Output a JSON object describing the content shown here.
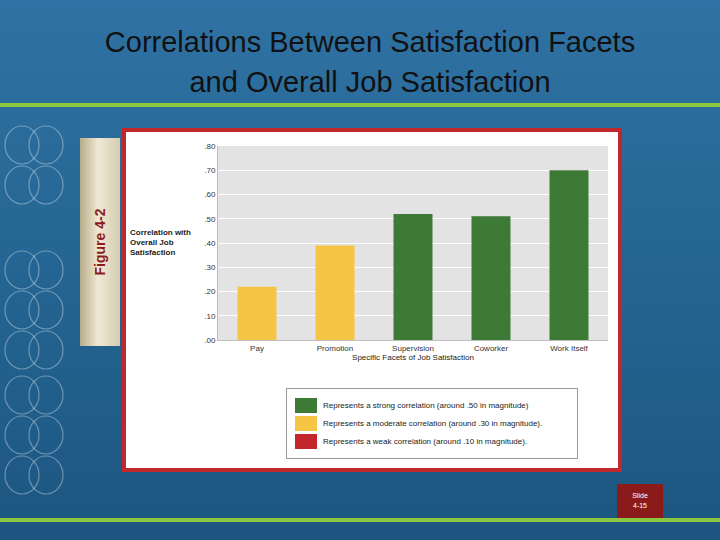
{
  "slide": {
    "title": "Correlations Between Satisfaction Facets and Overall Job Satisfaction",
    "figure_label": "Figure 4-2",
    "slide_number": "Slide 4-15"
  },
  "chart_data": {
    "type": "bar",
    "x_label": "Specific Facets of Job Satisfaction",
    "y_label": "Correlation with Overall Job Satisfaction",
    "categories": [
      "Pay",
      "Promotion",
      "Supervision",
      "Coworker",
      "Work Itself"
    ],
    "series": [
      {
        "name": "Represents a strong correlation (around .50 in magnitude)",
        "color": "#3d7a36",
        "values": [
          null,
          null,
          0.52,
          0.51,
          0.7
        ]
      },
      {
        "name": "Represents a moderate correlation (around .30 in magnitude).",
        "color": "#f6c545",
        "values": [
          0.22,
          0.39,
          null,
          null,
          null
        ]
      },
      {
        "name": "Represents a weak correlation (around .10 in magnitude).",
        "color": "#c1272d",
        "values": [
          null,
          null,
          null,
          null,
          null
        ]
      }
    ],
    "ylim": [
      0,
      0.8
    ],
    "yticks": [
      {
        "value": 0,
        "label": ".00"
      },
      {
        "value": 0.1,
        "label": ".10"
      },
      {
        "value": 0.2,
        "label": ".20"
      },
      {
        "value": 0.3,
        "label": ".30"
      },
      {
        "value": 0.4,
        "label": ".40"
      },
      {
        "value": 0.5,
        "label": ".50"
      },
      {
        "value": 0.6,
        "label": ".60"
      },
      {
        "value": 0.7,
        "label": ".70"
      },
      {
        "value": 0.8,
        "label": ".80"
      }
    ],
    "grid": true
  }
}
